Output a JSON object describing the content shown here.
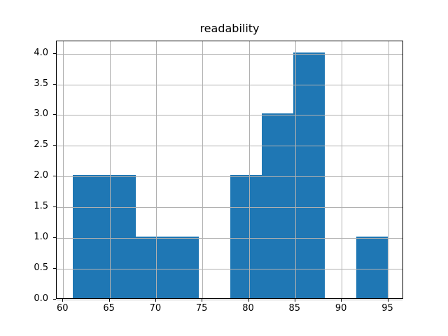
{
  "chart_data": {
    "type": "bar",
    "subtype": "histogram",
    "title": "readability",
    "xlabel": "",
    "ylabel": "",
    "bin_edges": [
      61.0,
      64.4,
      67.8,
      71.2,
      74.6,
      78.0,
      81.4,
      84.8,
      88.2,
      91.6,
      95.0
    ],
    "counts": [
      2,
      2,
      1,
      1,
      0,
      2,
      3,
      4,
      0,
      1
    ],
    "xlim": [
      59.3,
      96.7
    ],
    "ylim": [
      0,
      4.2
    ],
    "xticks": [
      60,
      65,
      70,
      75,
      80,
      85,
      90,
      95
    ],
    "xtick_labels": [
      "60",
      "65",
      "70",
      "75",
      "80",
      "85",
      "90",
      "95"
    ],
    "yticks": [
      0.0,
      0.5,
      1.0,
      1.5,
      2.0,
      2.5,
      3.0,
      3.5,
      4.0
    ],
    "ytick_labels": [
      "0.0",
      "0.5",
      "1.0",
      "1.5",
      "2.0",
      "2.5",
      "3.0",
      "3.5",
      "4.0"
    ],
    "grid": true,
    "legend": false,
    "grid_above_bars": true,
    "bar_color": "#1f77b4",
    "grid_color": "#b0b0b0",
    "axis_color": "#000000",
    "background_color": "#ffffff"
  }
}
